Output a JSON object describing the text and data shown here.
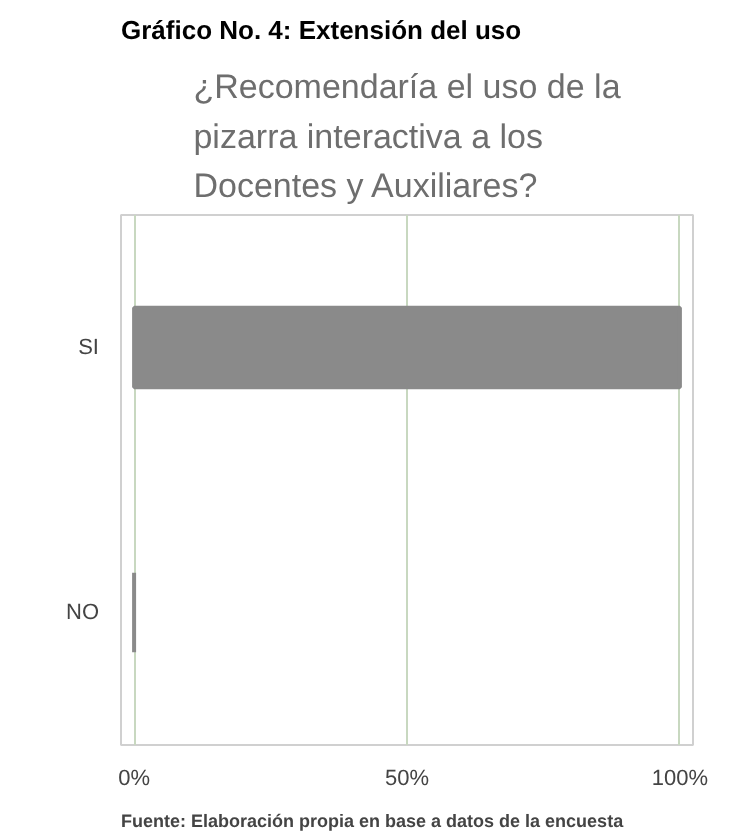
{
  "chart_data": {
    "type": "bar",
    "orientation": "horizontal",
    "title": "Gráfico No. 4: Extensión del uso",
    "subtitle": "¿Recomendaría el uso de la pizarra interactiva a los Docentes y Auxiliares?",
    "categories": [
      "SI",
      "NO"
    ],
    "values": [
      100,
      0
    ],
    "color": "#8a8a8a",
    "xlim": [
      0,
      100
    ],
    "xticks": [
      {
        "value": 0,
        "label": "0%"
      },
      {
        "value": 50,
        "label": "50%"
      },
      {
        "value": 100,
        "label": "100%"
      }
    ],
    "grid": "x",
    "annotations": [
      "Fuente: Elaboración propia en base a datos de la encuesta"
    ]
  }
}
